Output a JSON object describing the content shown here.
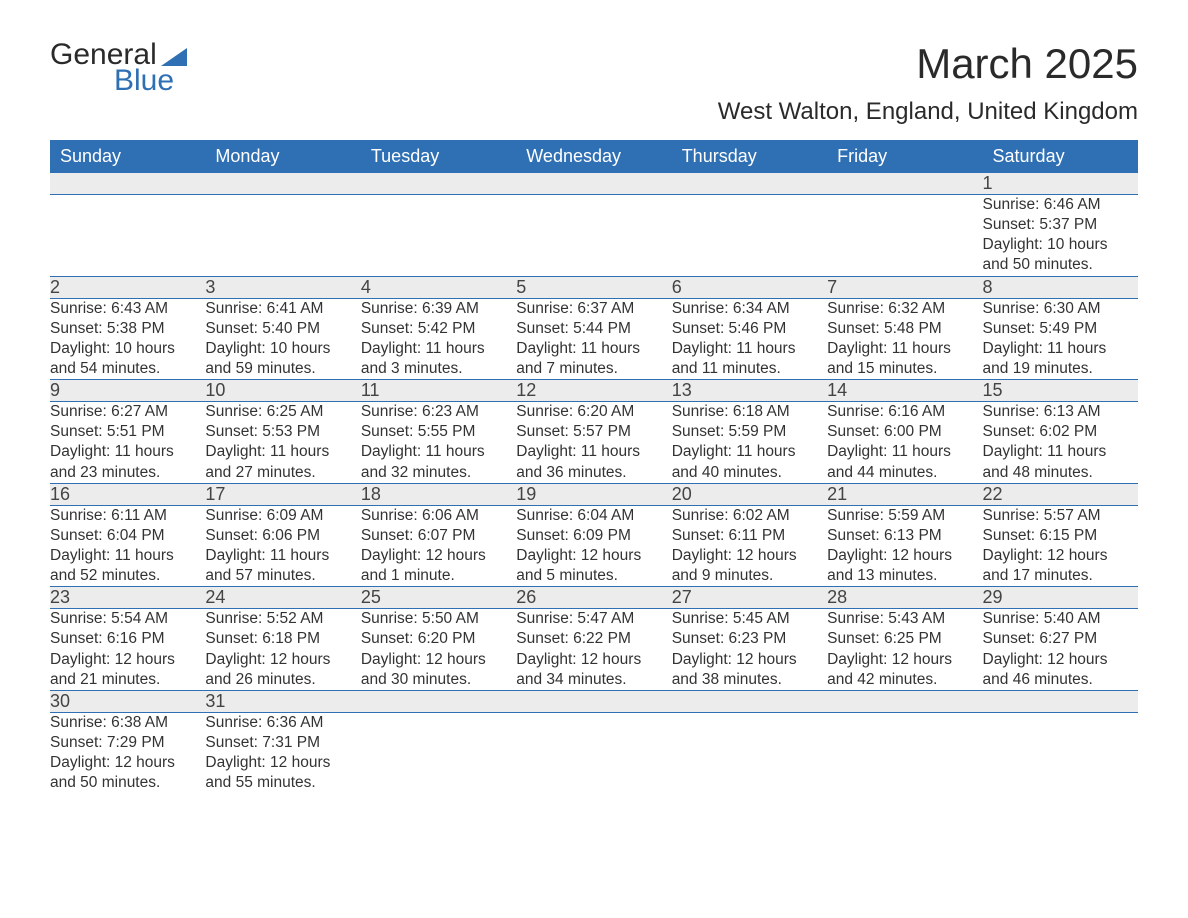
{
  "logo": {
    "line1": "General",
    "line2": "Blue"
  },
  "title": "March 2025",
  "location": "West Walton, England, United Kingdom",
  "dow": [
    "Sunday",
    "Monday",
    "Tuesday",
    "Wednesday",
    "Thursday",
    "Friday",
    "Saturday"
  ],
  "colors": {
    "header_bg": "#2f6fb3",
    "header_text": "#ffffff",
    "daynum_bg": "#ececec",
    "border": "#2f6fb3",
    "body_text": "#333333",
    "page_bg": "#ffffff"
  },
  "weeks": [
    [
      null,
      null,
      null,
      null,
      null,
      null,
      {
        "n": "1",
        "sr": "Sunrise: 6:46 AM",
        "ss": "Sunset: 5:37 PM",
        "d1": "Daylight: 10 hours",
        "d2": "and 50 minutes."
      }
    ],
    [
      {
        "n": "2",
        "sr": "Sunrise: 6:43 AM",
        "ss": "Sunset: 5:38 PM",
        "d1": "Daylight: 10 hours",
        "d2": "and 54 minutes."
      },
      {
        "n": "3",
        "sr": "Sunrise: 6:41 AM",
        "ss": "Sunset: 5:40 PM",
        "d1": "Daylight: 10 hours",
        "d2": "and 59 minutes."
      },
      {
        "n": "4",
        "sr": "Sunrise: 6:39 AM",
        "ss": "Sunset: 5:42 PM",
        "d1": "Daylight: 11 hours",
        "d2": "and 3 minutes."
      },
      {
        "n": "5",
        "sr": "Sunrise: 6:37 AM",
        "ss": "Sunset: 5:44 PM",
        "d1": "Daylight: 11 hours",
        "d2": "and 7 minutes."
      },
      {
        "n": "6",
        "sr": "Sunrise: 6:34 AM",
        "ss": "Sunset: 5:46 PM",
        "d1": "Daylight: 11 hours",
        "d2": "and 11 minutes."
      },
      {
        "n": "7",
        "sr": "Sunrise: 6:32 AM",
        "ss": "Sunset: 5:48 PM",
        "d1": "Daylight: 11 hours",
        "d2": "and 15 minutes."
      },
      {
        "n": "8",
        "sr": "Sunrise: 6:30 AM",
        "ss": "Sunset: 5:49 PM",
        "d1": "Daylight: 11 hours",
        "d2": "and 19 minutes."
      }
    ],
    [
      {
        "n": "9",
        "sr": "Sunrise: 6:27 AM",
        "ss": "Sunset: 5:51 PM",
        "d1": "Daylight: 11 hours",
        "d2": "and 23 minutes."
      },
      {
        "n": "10",
        "sr": "Sunrise: 6:25 AM",
        "ss": "Sunset: 5:53 PM",
        "d1": "Daylight: 11 hours",
        "d2": "and 27 minutes."
      },
      {
        "n": "11",
        "sr": "Sunrise: 6:23 AM",
        "ss": "Sunset: 5:55 PM",
        "d1": "Daylight: 11 hours",
        "d2": "and 32 minutes."
      },
      {
        "n": "12",
        "sr": "Sunrise: 6:20 AM",
        "ss": "Sunset: 5:57 PM",
        "d1": "Daylight: 11 hours",
        "d2": "and 36 minutes."
      },
      {
        "n": "13",
        "sr": "Sunrise: 6:18 AM",
        "ss": "Sunset: 5:59 PM",
        "d1": "Daylight: 11 hours",
        "d2": "and 40 minutes."
      },
      {
        "n": "14",
        "sr": "Sunrise: 6:16 AM",
        "ss": "Sunset: 6:00 PM",
        "d1": "Daylight: 11 hours",
        "d2": "and 44 minutes."
      },
      {
        "n": "15",
        "sr": "Sunrise: 6:13 AM",
        "ss": "Sunset: 6:02 PM",
        "d1": "Daylight: 11 hours",
        "d2": "and 48 minutes."
      }
    ],
    [
      {
        "n": "16",
        "sr": "Sunrise: 6:11 AM",
        "ss": "Sunset: 6:04 PM",
        "d1": "Daylight: 11 hours",
        "d2": "and 52 minutes."
      },
      {
        "n": "17",
        "sr": "Sunrise: 6:09 AM",
        "ss": "Sunset: 6:06 PM",
        "d1": "Daylight: 11 hours",
        "d2": "and 57 minutes."
      },
      {
        "n": "18",
        "sr": "Sunrise: 6:06 AM",
        "ss": "Sunset: 6:07 PM",
        "d1": "Daylight: 12 hours",
        "d2": "and 1 minute."
      },
      {
        "n": "19",
        "sr": "Sunrise: 6:04 AM",
        "ss": "Sunset: 6:09 PM",
        "d1": "Daylight: 12 hours",
        "d2": "and 5 minutes."
      },
      {
        "n": "20",
        "sr": "Sunrise: 6:02 AM",
        "ss": "Sunset: 6:11 PM",
        "d1": "Daylight: 12 hours",
        "d2": "and 9 minutes."
      },
      {
        "n": "21",
        "sr": "Sunrise: 5:59 AM",
        "ss": "Sunset: 6:13 PM",
        "d1": "Daylight: 12 hours",
        "d2": "and 13 minutes."
      },
      {
        "n": "22",
        "sr": "Sunrise: 5:57 AM",
        "ss": "Sunset: 6:15 PM",
        "d1": "Daylight: 12 hours",
        "d2": "and 17 minutes."
      }
    ],
    [
      {
        "n": "23",
        "sr": "Sunrise: 5:54 AM",
        "ss": "Sunset: 6:16 PM",
        "d1": "Daylight: 12 hours",
        "d2": "and 21 minutes."
      },
      {
        "n": "24",
        "sr": "Sunrise: 5:52 AM",
        "ss": "Sunset: 6:18 PM",
        "d1": "Daylight: 12 hours",
        "d2": "and 26 minutes."
      },
      {
        "n": "25",
        "sr": "Sunrise: 5:50 AM",
        "ss": "Sunset: 6:20 PM",
        "d1": "Daylight: 12 hours",
        "d2": "and 30 minutes."
      },
      {
        "n": "26",
        "sr": "Sunrise: 5:47 AM",
        "ss": "Sunset: 6:22 PM",
        "d1": "Daylight: 12 hours",
        "d2": "and 34 minutes."
      },
      {
        "n": "27",
        "sr": "Sunrise: 5:45 AM",
        "ss": "Sunset: 6:23 PM",
        "d1": "Daylight: 12 hours",
        "d2": "and 38 minutes."
      },
      {
        "n": "28",
        "sr": "Sunrise: 5:43 AM",
        "ss": "Sunset: 6:25 PM",
        "d1": "Daylight: 12 hours",
        "d2": "and 42 minutes."
      },
      {
        "n": "29",
        "sr": "Sunrise: 5:40 AM",
        "ss": "Sunset: 6:27 PM",
        "d1": "Daylight: 12 hours",
        "d2": "and 46 minutes."
      }
    ],
    [
      {
        "n": "30",
        "sr": "Sunrise: 6:38 AM",
        "ss": "Sunset: 7:29 PM",
        "d1": "Daylight: 12 hours",
        "d2": "and 50 minutes."
      },
      {
        "n": "31",
        "sr": "Sunrise: 6:36 AM",
        "ss": "Sunset: 7:31 PM",
        "d1": "Daylight: 12 hours",
        "d2": "and 55 minutes."
      },
      null,
      null,
      null,
      null,
      null
    ]
  ]
}
